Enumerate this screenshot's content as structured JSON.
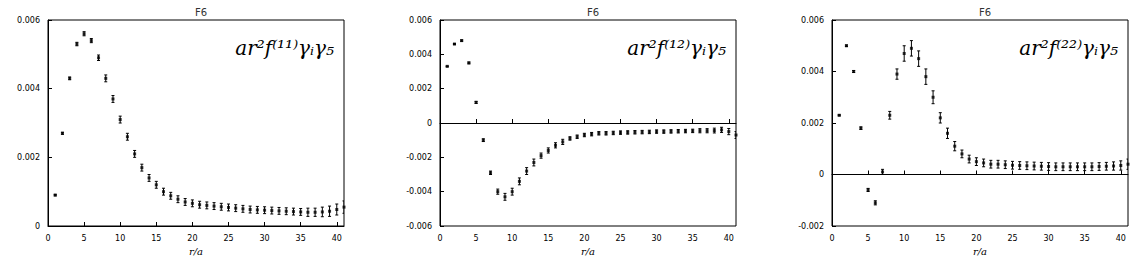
{
  "chart_data": [
    {
      "type": "scatter",
      "title": "F6",
      "x_label": "r/a",
      "annotation": "ar²f⁽¹¹⁾γᵢγ₅",
      "xlim": [
        0,
        41
      ],
      "xticks": [
        0,
        5,
        10,
        15,
        20,
        25,
        30,
        35,
        40
      ],
      "ylim": [
        0,
        0.006
      ],
      "yticks": [
        0,
        0.002,
        0.004,
        0.006
      ],
      "grid": false,
      "x": [
        1,
        2,
        3,
        4,
        5,
        6,
        7,
        8,
        9,
        10,
        11,
        12,
        13,
        14,
        15,
        16,
        17,
        18,
        19,
        20,
        21,
        22,
        23,
        24,
        25,
        26,
        27,
        28,
        29,
        30,
        31,
        32,
        33,
        34,
        35,
        36,
        37,
        38,
        39,
        40,
        41
      ],
      "series": [
        {
          "color": "#000000",
          "marker": "square",
          "values": [
            0.0009,
            0.0027,
            0.0043,
            0.0053,
            0.0056,
            0.0054,
            0.0049,
            0.0043,
            0.0037,
            0.0031,
            0.0026,
            0.0021,
            0.0017,
            0.0014,
            0.0012,
            0.001,
            0.00088,
            0.00078,
            0.0007,
            0.00066,
            0.00062,
            0.0006,
            0.00058,
            0.00056,
            0.00054,
            0.00052,
            0.0005,
            0.00048,
            0.00047,
            0.00046,
            0.00045,
            0.00044,
            0.00043,
            0.00042,
            0.00041,
            0.0004,
            0.0004,
            0.00041,
            0.00043,
            0.00048,
            0.00055
          ],
          "errors": [
            2e-05,
            3e-05,
            4e-05,
            5e-05,
            6e-05,
            6e-05,
            8e-05,
            0.0001,
            0.0001,
            0.0001,
            0.0001,
            0.0001,
            0.0001,
            0.0001,
            0.0001,
            0.0001,
            0.0001,
            0.0001,
            0.0001,
            0.0001,
            0.0001,
            0.0001,
            0.0001,
            0.0001,
            0.0001,
            0.0001,
            0.0001,
            0.0001,
            0.0001,
            0.0001,
            0.0001,
            0.0001,
            0.0001,
            0.0001,
            0.0001,
            0.00012,
            0.00012,
            0.00014,
            0.00015,
            0.00016,
            0.00018
          ]
        }
      ]
    },
    {
      "type": "scatter",
      "title": "F6",
      "x_label": "r/a",
      "annotation": "ar²f⁽¹²⁾γᵢγ₅",
      "xlim": [
        0,
        41
      ],
      "xticks": [
        0,
        5,
        10,
        15,
        20,
        25,
        30,
        35,
        40
      ],
      "ylim": [
        -0.006,
        0.006
      ],
      "yticks": [
        -0.006,
        -0.004,
        -0.002,
        0,
        0.002,
        0.004,
        0.006
      ],
      "grid": false,
      "hline": 0,
      "x": [
        1,
        2,
        3,
        4,
        5,
        6,
        7,
        8,
        9,
        10,
        11,
        12,
        13,
        14,
        15,
        16,
        17,
        18,
        19,
        20,
        21,
        22,
        23,
        24,
        25,
        26,
        27,
        28,
        29,
        30,
        31,
        32,
        33,
        34,
        35,
        36,
        37,
        38,
        39,
        40,
        41
      ],
      "series": [
        {
          "color": "#000000",
          "marker": "square",
          "values": [
            0.0033,
            0.0046,
            0.0048,
            0.0035,
            0.0012,
            -0.001,
            -0.0029,
            -0.004,
            -0.0043,
            -0.004,
            -0.0034,
            -0.0028,
            -0.0023,
            -0.0019,
            -0.0016,
            -0.0013,
            -0.0011,
            -0.0009,
            -0.0008,
            -0.0007,
            -0.00065,
            -0.0006,
            -0.0006,
            -0.00058,
            -0.00056,
            -0.00055,
            -0.00054,
            -0.00053,
            -0.00052,
            -0.0005,
            -0.0005,
            -0.00049,
            -0.00048,
            -0.00047,
            -0.00046,
            -0.00045,
            -0.00045,
            -0.00044,
            -0.0004,
            -0.0005,
            -0.0007
          ],
          "errors": [
            2e-05,
            3e-05,
            4e-05,
            5e-05,
            6e-05,
            8e-05,
            0.0001,
            0.00015,
            0.0002,
            0.0002,
            0.0002,
            0.0002,
            0.0002,
            0.00015,
            0.00015,
            0.00015,
            0.00015,
            0.0001,
            0.0001,
            0.0001,
            0.0001,
            0.0001,
            0.0001,
            0.0001,
            0.0001,
            0.0001,
            0.0001,
            0.0001,
            0.0001,
            0.0001,
            0.0001,
            0.0001,
            0.0001,
            0.0001,
            0.0001,
            0.00012,
            0.00012,
            0.00014,
            0.00015,
            0.00018,
            0.0002
          ]
        }
      ]
    },
    {
      "type": "scatter",
      "title": "F6",
      "x_label": "r/a",
      "annotation": "ar²f⁽²²⁾γᵢγ₅",
      "xlim": [
        0,
        41
      ],
      "xticks": [
        0,
        5,
        10,
        15,
        20,
        25,
        30,
        35,
        40
      ],
      "ylim": [
        -0.002,
        0.006
      ],
      "yticks": [
        -0.002,
        0,
        0.002,
        0.004,
        0.006
      ],
      "grid": false,
      "hline": 0,
      "x": [
        1,
        2,
        3,
        4,
        5,
        6,
        7,
        8,
        9,
        10,
        11,
        12,
        13,
        14,
        15,
        16,
        17,
        18,
        19,
        20,
        21,
        22,
        23,
        24,
        25,
        26,
        27,
        28,
        29,
        30,
        31,
        32,
        33,
        34,
        35,
        36,
        37,
        38,
        39,
        40,
        41
      ],
      "series": [
        {
          "color": "#000000",
          "marker": "square",
          "values": [
            0.0023,
            0.005,
            0.004,
            0.0018,
            -0.0006,
            -0.0011,
            0.0001,
            0.0023,
            0.0039,
            0.0047,
            0.0049,
            0.0045,
            0.0038,
            0.003,
            0.0022,
            0.0016,
            0.0011,
            0.0008,
            0.0006,
            0.0005,
            0.00045,
            0.0004,
            0.0004,
            0.00038,
            0.00036,
            0.00035,
            0.00034,
            0.00033,
            0.00032,
            0.00031,
            0.0003,
            0.0003,
            0.0003,
            0.0003,
            0.0003,
            0.0003,
            0.00031,
            0.00032,
            0.00033,
            0.00035,
            0.0004
          ],
          "errors": [
            2e-05,
            3e-05,
            4e-05,
            5e-05,
            6e-05,
            8e-05,
            0.0001,
            0.00015,
            0.0002,
            0.0003,
            0.0003,
            0.0003,
            0.0003,
            0.00025,
            0.0002,
            0.0002,
            0.00018,
            0.00015,
            0.00015,
            0.00015,
            0.00015,
            0.00015,
            0.00015,
            0.00015,
            0.00015,
            0.00015,
            0.00015,
            0.00015,
            0.00015,
            0.00015,
            0.00015,
            0.00015,
            0.00015,
            0.00015,
            0.00015,
            0.00015,
            0.00015,
            0.00015,
            0.00016,
            0.00018,
            0.0002
          ]
        }
      ]
    }
  ]
}
